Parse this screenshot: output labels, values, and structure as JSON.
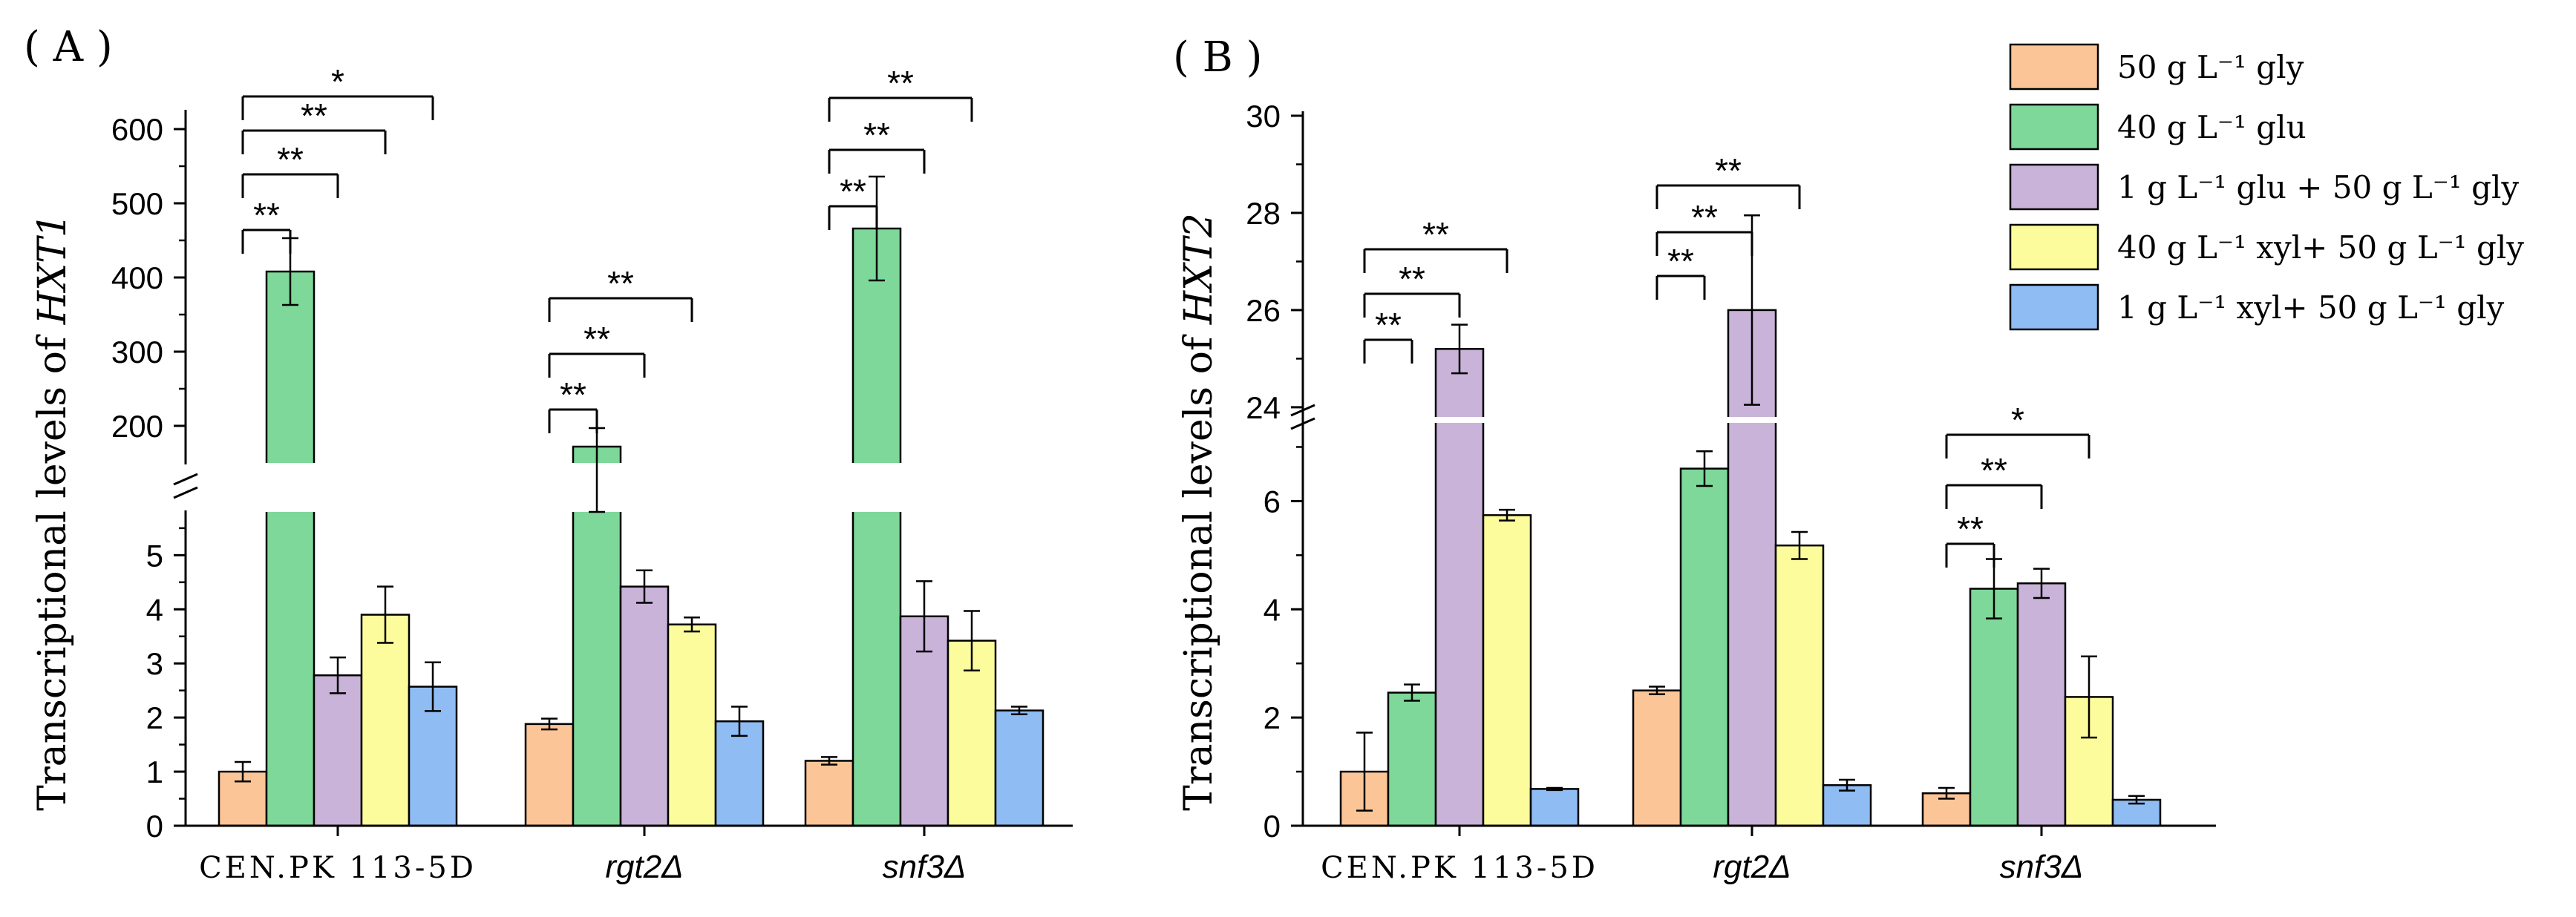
{
  "legend": {
    "entries": [
      {
        "label": "50 g L⁻¹ gly",
        "color": "#FCC597"
      },
      {
        "label": "40 g L⁻¹ glu",
        "color": "#7ED899"
      },
      {
        "label": "1 g L⁻¹ glu + 50 g L⁻¹ gly",
        "color": "#C9B3D9"
      },
      {
        "label": "40 g L⁻¹ xyl+ 50 g L⁻¹ gly",
        "color": "#FDFC9C"
      },
      {
        "label": "1 g L⁻¹ xyl+ 50 g L⁻¹ gly",
        "color": "#8FBCF3"
      }
    ]
  },
  "chart_data": [
    {
      "panel_label": "( A )",
      "type": "bar",
      "ylabel_prefix": "Transcriptional levels of ",
      "ylabel_gene": "HXT1",
      "categories": [
        "CEN.PK 113-5D",
        "rgt2Δ",
        "snf3Δ"
      ],
      "series": [
        {
          "name": "50 g L⁻¹ gly",
          "values": [
            1.0,
            1.88,
            1.2
          ],
          "errors": [
            0.18,
            0.1,
            0.07
          ]
        },
        {
          "name": "40 g L⁻¹ glu",
          "values": [
            408,
            172,
            466
          ],
          "errors": [
            45,
            25,
            70
          ]
        },
        {
          "name": "1 g L⁻¹ glu + 50 g L⁻¹ gly",
          "values": [
            2.78,
            4.42,
            3.87
          ],
          "errors": [
            0.33,
            0.3,
            0.65
          ]
        },
        {
          "name": "40 g L⁻¹ xyl+ 50 g L⁻¹ gly",
          "values": [
            3.9,
            3.72,
            3.42
          ],
          "errors": [
            0.52,
            0.13,
            0.55
          ]
        },
        {
          "name": "1 g L⁻¹ xyl+ 50 g L⁻¹ gly",
          "values": [
            2.57,
            1.93,
            2.13
          ],
          "errors": [
            0.45,
            0.27,
            0.07
          ]
        }
      ],
      "lower_axis": {
        "range": [
          0,
          5.8
        ],
        "ticks": [
          0,
          1,
          2,
          3,
          4,
          5
        ]
      },
      "upper_axis": {
        "range": [
          150,
          620
        ],
        "ticks": [
          200,
          300,
          400,
          500,
          600
        ]
      },
      "significance": [
        {
          "group": 0,
          "from": 0,
          "to": 1,
          "label": "**"
        },
        {
          "group": 0,
          "from": 0,
          "to": 2,
          "label": "**"
        },
        {
          "group": 0,
          "from": 0,
          "to": 3,
          "label": "**"
        },
        {
          "group": 0,
          "from": 0,
          "to": 4,
          "label": "*"
        },
        {
          "group": 1,
          "from": 0,
          "to": 1,
          "label": "**"
        },
        {
          "group": 1,
          "from": 0,
          "to": 2,
          "label": "**"
        },
        {
          "group": 1,
          "from": 0,
          "to": 3,
          "label": "**"
        },
        {
          "group": 2,
          "from": 0,
          "to": 1,
          "label": "**"
        },
        {
          "group": 2,
          "from": 0,
          "to": 2,
          "label": "**"
        },
        {
          "group": 2,
          "from": 0,
          "to": 3,
          "label": "**"
        }
      ]
    },
    {
      "panel_label": "( B )",
      "type": "bar",
      "ylabel_prefix": "Transcriptional levels of ",
      "ylabel_gene": "HXT2",
      "categories": [
        "CEN.PK 113-5D",
        "rgt2Δ",
        "snf3Δ"
      ],
      "series": [
        {
          "name": "50 g L⁻¹ gly",
          "values": [
            1.0,
            2.5,
            0.6
          ],
          "errors": [
            0.72,
            0.07,
            0.1
          ]
        },
        {
          "name": "40 g L⁻¹ glu",
          "values": [
            2.46,
            6.6,
            4.38
          ],
          "errors": [
            0.15,
            0.32,
            0.55
          ]
        },
        {
          "name": "1 g L⁻¹ glu + 50 g L⁻¹ gly",
          "values": [
            25.2,
            26.0,
            4.48
          ],
          "errors": [
            0.5,
            1.95,
            0.27
          ]
        },
        {
          "name": "40 g L⁻¹ xyl+ 50 g L⁻¹ gly",
          "values": [
            5.74,
            5.18,
            2.38
          ],
          "errors": [
            0.1,
            0.25,
            0.75
          ]
        },
        {
          "name": "1 g L⁻¹ xyl+ 50 g L⁻¹ gly",
          "values": [
            0.68,
            0.75,
            0.48
          ],
          "errors": [
            0.02,
            0.1,
            0.07
          ]
        }
      ],
      "lower_axis": {
        "range": [
          0,
          7.5
        ],
        "ticks": [
          0,
          2,
          4,
          6
        ]
      },
      "upper_axis": {
        "range": [
          23.8,
          30
        ],
        "ticks": [
          24,
          26,
          28,
          30
        ]
      },
      "significance": [
        {
          "group": 0,
          "from": 0,
          "to": 1,
          "label": "**"
        },
        {
          "group": 0,
          "from": 0,
          "to": 2,
          "label": "**"
        },
        {
          "group": 0,
          "from": 0,
          "to": 3,
          "label": "**"
        },
        {
          "group": 1,
          "from": 0,
          "to": 1,
          "label": "**"
        },
        {
          "group": 1,
          "from": 0,
          "to": 2,
          "label": "**"
        },
        {
          "group": 1,
          "from": 0,
          "to": 3,
          "label": "**"
        },
        {
          "group": 2,
          "from": 0,
          "to": 1,
          "label": "**"
        },
        {
          "group": 2,
          "from": 0,
          "to": 2,
          "label": "**"
        },
        {
          "group": 2,
          "from": 0,
          "to": 3,
          "label": "*"
        }
      ]
    }
  ]
}
